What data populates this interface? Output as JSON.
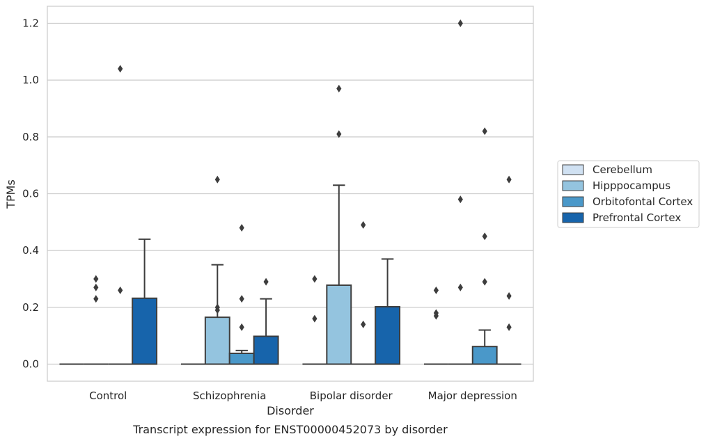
{
  "chart_data": {
    "type": "box",
    "title": "Transcript expression for ENST00000452073 by disorder",
    "xlabel": "Disorder",
    "ylabel": "TPMs",
    "ylim": [
      -0.06,
      1.26
    ],
    "yticks": [
      "0.0",
      "0.2",
      "0.4",
      "0.6",
      "0.8",
      "1.0",
      "1.2"
    ],
    "grid": "horizontal",
    "legend_position": "right",
    "categories": [
      "Control",
      "Schizophrenia",
      "Bipolar disorder",
      "Major depression"
    ],
    "series": [
      {
        "name": "Cerebellum",
        "color": "#d0e1f2",
        "boxes": [
          {
            "q1": 0,
            "median": 0,
            "q3": 0,
            "whisker_low": 0,
            "whisker_high": 0,
            "outliers": []
          },
          {
            "q1": 0,
            "median": 0,
            "q3": 0,
            "whisker_low": 0,
            "whisker_high": 0,
            "outliers": []
          },
          {
            "q1": 0,
            "median": 0,
            "q3": 0,
            "whisker_low": 0,
            "whisker_high": 0,
            "outliers": [
              0.3,
              0.16
            ]
          },
          {
            "q1": 0,
            "median": 0,
            "q3": 0,
            "whisker_low": 0,
            "whisker_high": 0,
            "outliers": [
              0.26,
              0.18,
              0.17
            ]
          }
        ]
      },
      {
        "name": "Hipppocampus",
        "color": "#94c4df",
        "boxes": [
          {
            "q1": 0,
            "median": 0,
            "q3": 0,
            "whisker_low": 0,
            "whisker_high": 0,
            "outliers": [
              0.3,
              0.27,
              0.23
            ]
          },
          {
            "q1": 0,
            "median": 0,
            "q3": 0.165,
            "whisker_low": 0,
            "whisker_high": 0.35,
            "outliers": [
              0.65,
              0.2,
              0.19
            ]
          },
          {
            "q1": 0,
            "median": 0,
            "q3": 0.278,
            "whisker_low": 0,
            "whisker_high": 0.63,
            "outliers": [
              0.97,
              0.81
            ]
          },
          {
            "q1": 0,
            "median": 0,
            "q3": 0,
            "whisker_low": 0,
            "whisker_high": 0,
            "outliers": [
              1.2,
              0.58,
              0.27
            ]
          }
        ]
      },
      {
        "name": "Orbitofontal Cortex",
        "color": "#4a98c9",
        "boxes": [
          {
            "q1": 0,
            "median": 0,
            "q3": 0,
            "whisker_low": 0,
            "whisker_high": 0,
            "outliers": [
              1.04,
              0.26
            ]
          },
          {
            "q1": 0,
            "median": 0,
            "q3": 0.038,
            "whisker_low": 0,
            "whisker_high": 0.048,
            "outliers": [
              0.48,
              0.23,
              0.13
            ]
          },
          {
            "q1": 0,
            "median": 0,
            "q3": 0,
            "whisker_low": 0,
            "whisker_high": 0,
            "outliers": [
              0.49,
              0.14
            ]
          },
          {
            "q1": 0,
            "median": 0,
            "q3": 0.062,
            "whisker_low": 0,
            "whisker_high": 0.12,
            "outliers": [
              0.82,
              0.45,
              0.29
            ]
          }
        ]
      },
      {
        "name": "Prefrontal Cortex",
        "color": "#1764ab",
        "boxes": [
          {
            "q1": 0,
            "median": 0,
            "q3": 0.232,
            "whisker_low": 0,
            "whisker_high": 0.44,
            "outliers": []
          },
          {
            "q1": 0,
            "median": 0,
            "q3": 0.098,
            "whisker_low": 0,
            "whisker_high": 0.23,
            "outliers": [
              0.29
            ]
          },
          {
            "q1": 0,
            "median": 0,
            "q3": 0.202,
            "whisker_low": 0,
            "whisker_high": 0.37,
            "outliers": []
          },
          {
            "q1": 0,
            "median": 0,
            "q3": 0,
            "whisker_low": 0,
            "whisker_high": 0,
            "outliers": [
              0.65,
              0.24,
              0.13
            ]
          }
        ]
      }
    ]
  }
}
